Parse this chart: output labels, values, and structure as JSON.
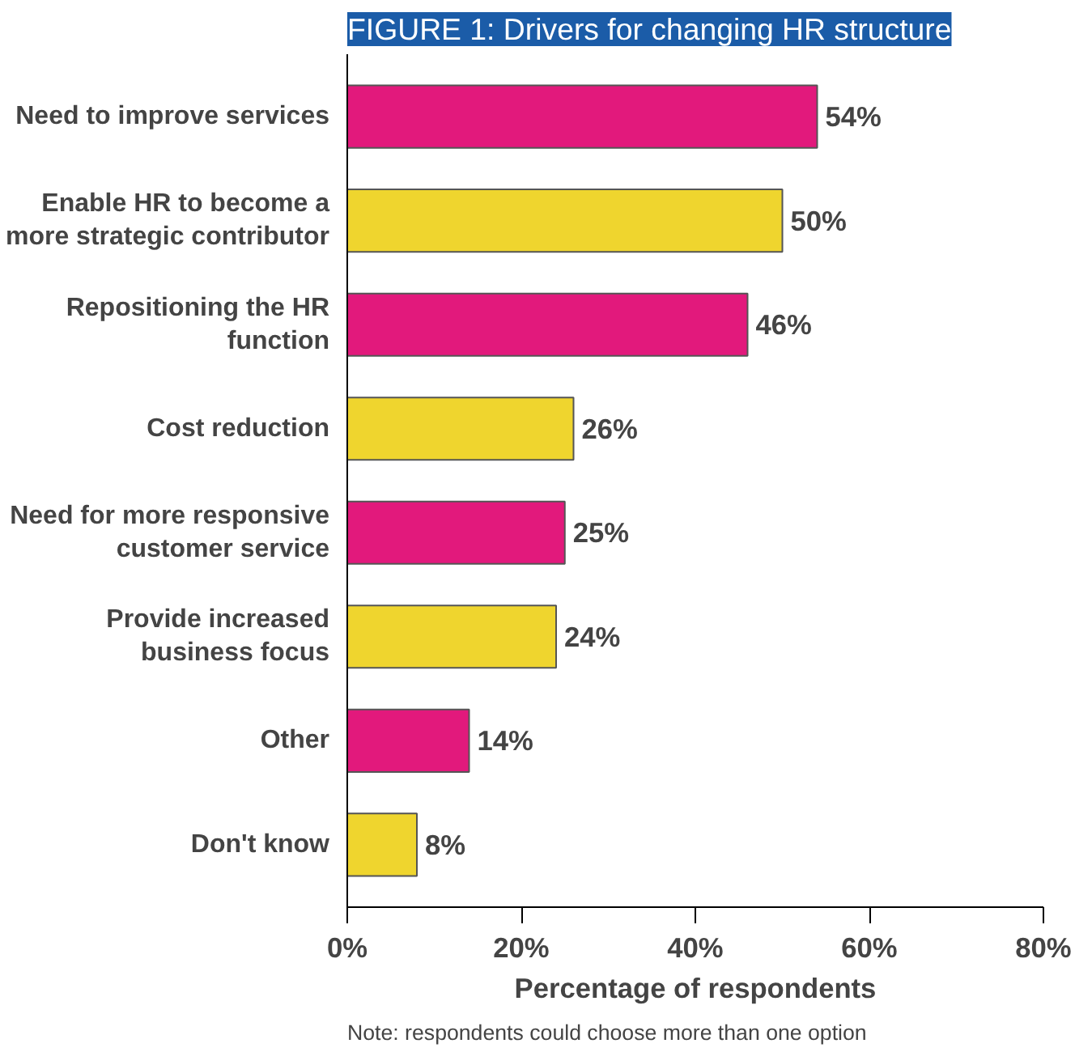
{
  "chart_data": {
    "type": "bar",
    "orientation": "horizontal",
    "title": "FIGURE 1: Drivers for changing HR structure",
    "xlabel": "Percentage of respondents",
    "categories": [
      "Need to improve services",
      "Enable HR to become a\nmore strategic contributor",
      "Repositioning the HR\nfunction",
      "Cost reduction",
      "Need for more responsive\ncustomer service",
      "Provide increased\nbusiness focus",
      "Other",
      "Don't know"
    ],
    "values": [
      54,
      50,
      46,
      26,
      25,
      24,
      14,
      8
    ],
    "value_labels": [
      "54%",
      "50%",
      "46%",
      "26%",
      "25%",
      "24%",
      "14%",
      "8%"
    ],
    "colors": [
      "#e2197c",
      "#efd52e",
      "#e2197c",
      "#efd52e",
      "#e2197c",
      "#efd52e",
      "#e2197c",
      "#efd52e"
    ],
    "xlim": [
      0,
      80
    ],
    "xticks": [
      {
        "value": 0,
        "label": "0%"
      },
      {
        "value": 20,
        "label": "20%"
      },
      {
        "value": 40,
        "label": "40%"
      },
      {
        "value": 60,
        "label": "60%"
      },
      {
        "value": 80,
        "label": "80%"
      }
    ],
    "grid": false,
    "annotations": [
      "Note: respondents could choose more than one option"
    ]
  }
}
